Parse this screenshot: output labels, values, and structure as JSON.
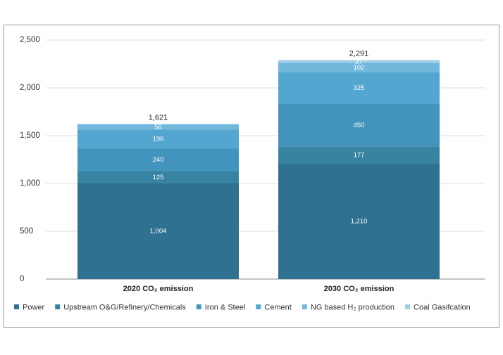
{
  "chart_data": {
    "type": "stacked_bar",
    "categories": [
      "2020 CO₂ emission",
      "2030 CO₂ emission"
    ],
    "series": [
      {
        "name": "Power",
        "color": "#2e7190",
        "values": [
          1004,
          1210
        ],
        "value_labels": [
          "1,004",
          "1,210"
        ]
      },
      {
        "name": "Upstream O&G/Refinery/Chemicals",
        "color": "#3784a2",
        "values": [
          125,
          177
        ]
      },
      {
        "name": "Iron & Steel",
        "color": "#4394bc",
        "values": [
          240,
          450
        ]
      },
      {
        "name": "Cement",
        "color": "#52a6d0",
        "values": [
          196,
          325
        ]
      },
      {
        "name": "NG based H₂ production",
        "color": "#72b8dd",
        "values": [
          56,
          102
        ]
      },
      {
        "name": "Coal Gasifcation",
        "color": "#a2cfe7",
        "values": [
          null,
          27
        ]
      }
    ],
    "totals": [
      1621,
      2291
    ],
    "total_labels": [
      "1,621",
      "2,291"
    ],
    "ylim": [
      0,
      2500
    ],
    "yticks": [
      0,
      500,
      {
        "value": 1000,
        "label": "1,000"
      },
      {
        "value": 1500,
        "label": "1,500"
      },
      {
        "value": 2000,
        "label": "2,000"
      },
      {
        "value": 2500,
        "label": "2,500"
      }
    ],
    "grid": true,
    "legend": "bottom"
  }
}
